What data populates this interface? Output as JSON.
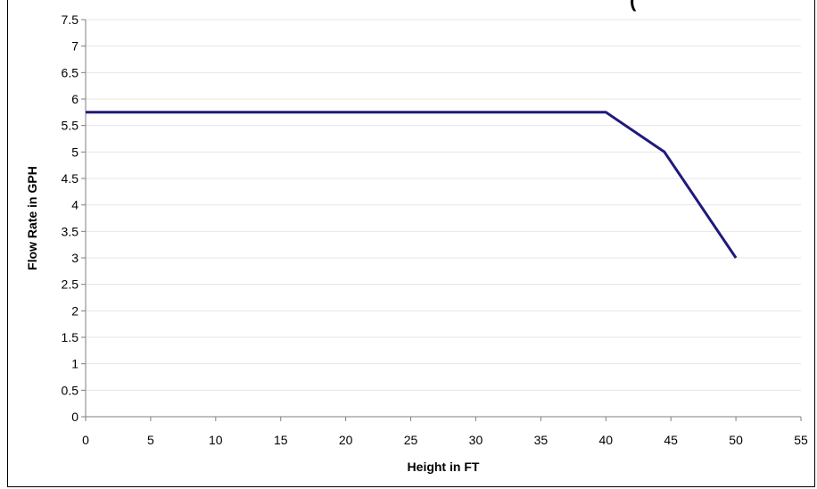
{
  "header_fragment": "(",
  "chart_data": {
    "type": "line",
    "title": "",
    "xlabel": "Height in FT",
    "ylabel": "Flow Rate in GPH",
    "xlim": [
      0,
      55
    ],
    "ylim": [
      0,
      7.5
    ],
    "x_ticks": [
      "0",
      "5",
      "10",
      "15",
      "20",
      "25",
      "30",
      "35",
      "40",
      "45",
      "50",
      "55"
    ],
    "y_ticks": [
      "0",
      "0.5",
      "1",
      "1.5",
      "2",
      "2.5",
      "3",
      "3.5",
      "4",
      "4.5",
      "5",
      "5.5",
      "6",
      "6.5",
      "7",
      "7.5"
    ],
    "grid": true,
    "legend": "none",
    "series": [
      {
        "color": "#1f1a7a",
        "x": [
          0,
          40,
          44.5,
          50
        ],
        "y": [
          5.75,
          5.75,
          5.0,
          3.0
        ]
      }
    ]
  }
}
